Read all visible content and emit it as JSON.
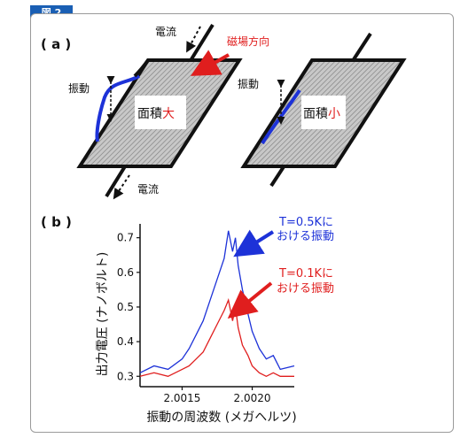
{
  "figure_label": "図 2",
  "panel_a": {
    "label": "( a )",
    "current_label": "電流",
    "current_label_bottom": "電流",
    "field_label": "磁場方向",
    "vibration_label_left": "振動",
    "vibration_label_right": "振動",
    "area_text": "面積",
    "large_text": "大",
    "small_text": "小"
  },
  "panel_b": {
    "label": "( b )",
    "annotation_blue_line1": "T=0.5Kに",
    "annotation_blue_line2": "おける振動",
    "annotation_red_line1": "T=0.1Kに",
    "annotation_red_line2": "おける振動"
  },
  "colors": {
    "blue": "#1d32d8",
    "red": "#e01e1e",
    "frame_tab": "#1a5fb4"
  },
  "chart_data": {
    "type": "line",
    "xlabel": "振動の周波数 (メガヘルツ)",
    "ylabel": "出力電圧 (ナノボルト)",
    "xlim": [
      2.0012,
      2.0023
    ],
    "ylim": [
      0.27,
      0.74
    ],
    "x_ticks": [
      "2.0015",
      "2.0020"
    ],
    "x_tick_values": [
      2.0015,
      2.002
    ],
    "y_ticks": [
      "0.3",
      "0.4",
      "0.5",
      "0.6",
      "0.7"
    ],
    "y_tick_values": [
      0.3,
      0.4,
      0.5,
      0.6,
      0.7
    ],
    "series": [
      {
        "color": "#1d32d8",
        "x": [
          2.0012,
          2.0013,
          2.0014,
          2.0015,
          2.00155,
          2.0016,
          2.00165,
          2.0017,
          2.00175,
          2.0018,
          2.00183,
          2.00186,
          2.00188,
          2.0019,
          2.00193,
          2.00197,
          2.002,
          2.00205,
          2.0021,
          2.00215,
          2.0022,
          2.0023
        ],
        "values": [
          0.31,
          0.33,
          0.32,
          0.35,
          0.38,
          0.42,
          0.46,
          0.52,
          0.58,
          0.64,
          0.72,
          0.66,
          0.7,
          0.62,
          0.55,
          0.48,
          0.43,
          0.38,
          0.35,
          0.36,
          0.32,
          0.33
        ]
      },
      {
        "color": "#e01e1e",
        "x": [
          2.0012,
          2.0013,
          2.0014,
          2.0015,
          2.00155,
          2.0016,
          2.00165,
          2.0017,
          2.00175,
          2.0018,
          2.00183,
          2.00186,
          2.00188,
          2.0019,
          2.00193,
          2.00197,
          2.002,
          2.00205,
          2.0021,
          2.00215,
          2.0022,
          2.0023
        ],
        "values": [
          0.3,
          0.31,
          0.3,
          0.32,
          0.33,
          0.35,
          0.37,
          0.41,
          0.45,
          0.49,
          0.52,
          0.46,
          0.5,
          0.44,
          0.39,
          0.36,
          0.33,
          0.31,
          0.3,
          0.31,
          0.3,
          0.3
        ]
      }
    ]
  }
}
